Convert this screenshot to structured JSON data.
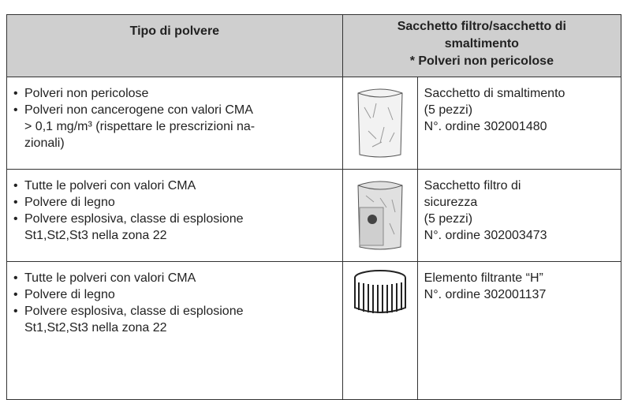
{
  "table": {
    "header": [
      [
        "Tipo di polvere"
      ],
      [
        "Sacchetto filtro/sacchetto di",
        "smaltimento",
        "* Polveri non pericolose"
      ]
    ],
    "rows": [
      {
        "dust": [
          [
            "Polveri non pericolose"
          ],
          [
            "Polveri non cancerogene con valori CMA",
            "> 0,1 mg/m³ (rispettare le prescrizioni na-",
            "zionali)"
          ]
        ],
        "product": [
          "Sacchetto di smaltimento",
          "(5 pezzi)",
          "N°. ordine 302001480"
        ]
      },
      {
        "dust": [
          [
            "Tutte le polveri con valori CMA"
          ],
          [
            "Polvere di legno"
          ],
          [
            "Polvere esplosiva, classe di esplosione",
            "St1,St2,St3 nella zona 22"
          ]
        ],
        "product": [
          "Sacchetto filtro di",
          "sicurezza",
          "(5 pezzi)",
          "N°. ordine 302003473"
        ]
      },
      {
        "dust": [
          [
            "Tutte le polveri con valori CMA"
          ],
          [
            "Polvere di legno"
          ],
          [
            "Polvere esplosiva, classe di esplosione",
            "St1,St2,St3 nella zona 22"
          ]
        ],
        "product": [
          "Elemento filtrante “H”",
          "N°. ordine 302001137"
        ]
      }
    ]
  }
}
